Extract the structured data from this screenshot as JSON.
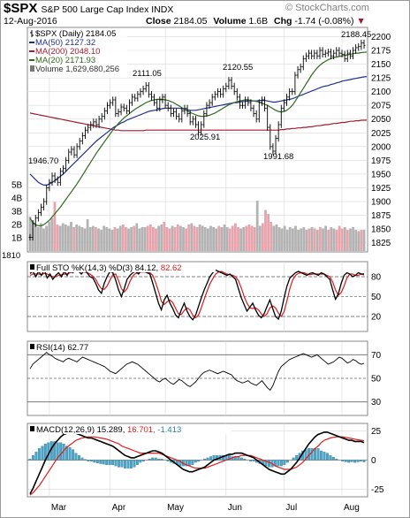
{
  "header": {
    "symbol": "$SPX",
    "name": "S&P 500 Large Cap Index",
    "exchange": "INDX",
    "watermark": "© StockCharts.com",
    "date": "12-Aug-2016",
    "close_label": "Close",
    "close_value": "2184.05",
    "volume_label": "Volume",
    "volume_value": "1.6B",
    "chg_label": "Chg",
    "chg_value": "-1.74 (-0.08%)",
    "chg_arrow": "▼"
  },
  "legend": {
    "price": "$SPX (Daily) 2184.05",
    "ma50": "MA(50) 2127.32",
    "ma200": "MA(200) 2048.10",
    "ma20": "MA(20) 2171.93",
    "volume": "Volume 1,629,680,256"
  },
  "annotations": {
    "a1946": "1946.70",
    "a2111": "2111.05",
    "a2120": "2120.55",
    "a2025": "2025.91",
    "a1991": "1991.68",
    "a2188": "2188.45",
    "a1810": "1810"
  },
  "price_axis": {
    "ticks": [
      "2200",
      "2175",
      "2150",
      "2125",
      "2100",
      "2075",
      "2050",
      "2025",
      "2000",
      "1975",
      "1950",
      "1925",
      "1900",
      "1875",
      "1850",
      "1825"
    ],
    "volume_ticks": [
      "5B",
      "4B",
      "3B",
      "2B",
      "1B"
    ]
  },
  "sto": {
    "label": "Full STO %K(14,3) %D(3) ",
    "k": "84.12",
    "d": "82.62",
    "ticks": [
      "80",
      "50",
      "20"
    ]
  },
  "rsi": {
    "label": "RSI(14) 62.77",
    "ticks": [
      "70",
      "50",
      "30"
    ]
  },
  "macd": {
    "label": "MACD(12,26,9) 15.289, ",
    "signal": "16.701",
    "hist": ", -1.413",
    "ticks": [
      "25",
      "0",
      "-25"
    ]
  },
  "x_labels": [
    "Mar",
    "Apr",
    "May",
    "Jun",
    "Jul",
    "Aug"
  ],
  "colors": {
    "price": "#000000",
    "ma50": "#1f2f8f",
    "ma200": "#a31c2c",
    "ma20": "#2e6b1f",
    "volume_up": "#b3b3b3",
    "volume_down": "#e7a4ad",
    "sto_d": "#e31a1c",
    "macd_hist": "#4aa6c8",
    "grid": "#d9d9d9"
  },
  "chart_data": {
    "type": "line",
    "title": "$SPX S&P 500 Large Cap Index",
    "y_range": [
      1810,
      2200
    ],
    "series": [
      {
        "name": "$SPX (Daily)",
        "type": "ohlc",
        "values": [
          1835,
          1860,
          1870,
          1880,
          1890,
          1900,
          1925,
          1935,
          1946.7,
          1940,
          1935,
          1955,
          1960,
          1975,
          1990,
          1995,
          1985,
          2000,
          2010,
          2020,
          2030,
          2035,
          2040,
          2045,
          2040,
          2050,
          2055,
          2065,
          2075,
          2080,
          2085,
          2060,
          2063,
          2072,
          2070,
          2065,
          2080,
          2090,
          2088,
          2095,
          2100,
          2105,
          2111.05,
          2095,
          2090,
          2080,
          2070,
          2085,
          2090,
          2075,
          2070,
          2060,
          2063,
          2055,
          2050,
          2065,
          2070,
          2060,
          2045,
          2050,
          2040,
          2025.91,
          2040,
          2060,
          2075,
          2080,
          2090,
          2095,
          2100,
          2095,
          2105,
          2110,
          2120.55,
          2110,
          2100,
          2090,
          2075,
          2075,
          2085,
          2080,
          2070,
          2060,
          2050,
          2080,
          2085,
          2070,
          2035,
          2000,
          1991.68,
          2015,
          2040,
          2070,
          2080,
          2090,
          2100,
          2100,
          2130,
          2140,
          2145,
          2160,
          2165,
          2170,
          2165,
          2170,
          2165,
          2175,
          2168,
          2170,
          2172,
          2165,
          2170,
          2175,
          2170,
          2168,
          2160,
          2170,
          2165,
          2175,
          2180,
          2182,
          2188.45,
          2184.05
        ]
      },
      {
        "name": "MA(50)",
        "values": [
          1950,
          1945,
          1940,
          1935,
          1932,
          1930,
          1930,
          1932,
          1935,
          1938,
          1942,
          1946,
          1950,
          1955,
          1960,
          1965,
          1970,
          1975,
          1980,
          1985,
          1990,
          1995,
          2000,
          2005,
          2010,
          2014,
          2018,
          2022,
          2026,
          2030,
          2034,
          2037,
          2040,
          2043,
          2045,
          2048,
          2050,
          2052,
          2054,
          2056,
          2058,
          2060,
          2062,
          2064,
          2065,
          2066,
          2067,
          2068,
          2069,
          2070,
          2070,
          2070,
          2070,
          2070,
          2070,
          2069,
          2068,
          2067,
          2066,
          2066,
          2066,
          2067,
          2068,
          2069,
          2070,
          2071,
          2072,
          2073,
          2074,
          2075,
          2076,
          2077,
          2078,
          2079,
          2080,
          2080,
          2081,
          2082,
          2082,
          2083,
          2083,
          2083,
          2083,
          2084,
          2084,
          2084,
          2083,
          2082,
          2081,
          2081,
          2082,
          2083,
          2084,
          2085,
          2086,
          2087,
          2089,
          2091,
          2093,
          2095,
          2097,
          2099,
          2101,
          2103,
          2105,
          2107,
          2109,
          2110,
          2111,
          2113,
          2114,
          2116,
          2117,
          2119,
          2120,
          2121,
          2122,
          2123,
          2124,
          2125,
          2126,
          2127,
          2127.32
        ]
      },
      {
        "name": "MA(200)",
        "values": [
          2061,
          2060,
          2059,
          2058,
          2057,
          2056,
          2055,
          2054,
          2053,
          2052,
          2051,
          2050,
          2049,
          2048,
          2047,
          2046,
          2045,
          2044,
          2043,
          2042,
          2041,
          2040,
          2039,
          2038,
          2037,
          2036,
          2035,
          2034,
          2033,
          2032,
          2031,
          2030,
          2030,
          2029,
          2029,
          2029,
          2029,
          2029,
          2029,
          2029,
          2029,
          2029,
          2030,
          2030,
          2030,
          2030,
          2030,
          2030,
          2030,
          2030,
          2030,
          2030,
          2030,
          2030,
          2030,
          2030,
          2030,
          2030,
          2030,
          2030,
          2030,
          2030,
          2030,
          2030,
          2030,
          2030,
          2030,
          2030,
          2030,
          2030,
          2030,
          2030,
          2030,
          2030,
          2030,
          2030,
          2030,
          2030,
          2030,
          2030,
          2030,
          2030,
          2030,
          2030,
          2030,
          2030,
          2030,
          2030,
          2030,
          2030,
          2030,
          2031,
          2031,
          2032,
          2032,
          2033,
          2033,
          2034,
          2034,
          2035,
          2035,
          2036,
          2036,
          2037,
          2038,
          2038,
          2039,
          2040,
          2040,
          2041,
          2042,
          2042,
          2043,
          2044,
          2044,
          2045,
          2046,
          2046,
          2047,
          2047,
          2048,
          2048,
          2048.1
        ]
      },
      {
        "name": "MA(20)",
        "values": [
          1870,
          1862,
          1858,
          1856,
          1856,
          1858,
          1862,
          1866,
          1872,
          1878,
          1884,
          1890,
          1897,
          1904,
          1911,
          1918,
          1925,
          1932,
          1940,
          1948,
          1956,
          1964,
          1972,
          1980,
          1988,
          1995,
          2002,
          2009,
          2016,
          2023,
          2030,
          2036,
          2042,
          2047,
          2052,
          2056,
          2060,
          2064,
          2068,
          2071,
          2074,
          2077,
          2080,
          2082,
          2084,
          2085,
          2086,
          2086,
          2086,
          2085,
          2084,
          2082,
          2080,
          2077,
          2074,
          2071,
          2068,
          2065,
          2062,
          2060,
          2058,
          2056,
          2055,
          2055,
          2056,
          2057,
          2059,
          2061,
          2064,
          2067,
          2070,
          2073,
          2076,
          2078,
          2080,
          2082,
          2083,
          2084,
          2085,
          2085,
          2084,
          2083,
          2082,
          2081,
          2079,
          2077,
          2075,
          2072,
          2069,
          2066,
          2064,
          2063,
          2064,
          2066,
          2070,
          2075,
          2082,
          2090,
          2098,
          2106,
          2114,
          2122,
          2130,
          2137,
          2143,
          2148,
          2152,
          2155,
          2158,
          2160,
          2162,
          2163,
          2164,
          2165,
          2166,
          2167,
          2168,
          2169,
          2170,
          2170,
          2171,
          2171.5,
          2171.93
        ]
      }
    ],
    "volume": {
      "unit": "B",
      "values": [
        2.6,
        2.3,
        2.0,
        1.8,
        2.1,
        1.7,
        1.9,
        2.2,
        2.5,
        3.7,
        2.0,
        1.9,
        2.1,
        2.0,
        1.9,
        2.2,
        1.8,
        2.0,
        1.9,
        1.8,
        1.7,
        2.4,
        1.8,
        1.9,
        1.8,
        1.7,
        1.6,
        1.9,
        1.8,
        1.7,
        1.6,
        1.8,
        1.7,
        1.9,
        2.0,
        1.8,
        1.7,
        1.8,
        1.9,
        2.1,
        1.7,
        1.8,
        1.8,
        1.9,
        2.0,
        1.8,
        1.7,
        1.9,
        2.0,
        2.2,
        1.8,
        1.7,
        1.9,
        1.8,
        2.0,
        1.9,
        1.8,
        1.7,
        2.0,
        2.1,
        1.9,
        1.8,
        2.0,
        1.9,
        1.8,
        1.7,
        1.9,
        1.8,
        1.7,
        1.9,
        1.8,
        2.0,
        1.8,
        1.7,
        1.9,
        2.1,
        1.8,
        1.7,
        1.8,
        1.9,
        2.0,
        1.9,
        1.8,
        3.8,
        1.9,
        2.1,
        3.1,
        2.8,
        2.2,
        1.9,
        2.0,
        1.8,
        1.7,
        1.9,
        1.6,
        1.8,
        1.7,
        1.9,
        1.6,
        1.7,
        1.8,
        1.6,
        1.7,
        1.8,
        1.7,
        1.6,
        1.8,
        1.7,
        1.9,
        1.6,
        1.8,
        1.7,
        1.6,
        1.9,
        1.7,
        1.8,
        1.6,
        1.7,
        1.8,
        1.6,
        1.5,
        1.6,
        1.6
      ]
    },
    "full_sto": {
      "y_range": [
        0,
        100
      ],
      "k": [
        85,
        88,
        80,
        88,
        82,
        90,
        78,
        84,
        76,
        82,
        86,
        80,
        88,
        82,
        90,
        86,
        92,
        88,
        84,
        90,
        86,
        80,
        78,
        70,
        60,
        55,
        70,
        80,
        88,
        86,
        75,
        60,
        50,
        62,
        76,
        82,
        86,
        88,
        84,
        90,
        88,
        86,
        84,
        70,
        55,
        40,
        30,
        45,
        52,
        40,
        32,
        22,
        18,
        30,
        40,
        28,
        20,
        15,
        22,
        35,
        48,
        60,
        70,
        80,
        86,
        90,
        88,
        86,
        84,
        82,
        84,
        80,
        76,
        62,
        48,
        38,
        28,
        34,
        40,
        30,
        22,
        18,
        24,
        35,
        45,
        32,
        20,
        16,
        28,
        48,
        66,
        78,
        82,
        86,
        88,
        86,
        84,
        82,
        85,
        86,
        84,
        82,
        86,
        84,
        80,
        76,
        60,
        46,
        54,
        70,
        82,
        86,
        84,
        80,
        82,
        86,
        84,
        84.12
      ],
      "d": [
        82,
        84,
        84,
        84,
        83,
        85,
        84,
        82,
        80,
        80,
        82,
        83,
        84,
        84,
        86,
        87,
        89,
        89,
        88,
        87,
        86,
        84,
        81,
        76,
        68,
        62,
        61,
        66,
        75,
        83,
        84,
        74,
        62,
        57,
        62,
        73,
        81,
        85,
        86,
        87,
        87,
        87,
        86,
        82,
        71,
        58,
        43,
        38,
        42,
        45,
        41,
        32,
        24,
        23,
        29,
        33,
        30,
        22,
        18,
        22,
        33,
        46,
        58,
        69,
        77,
        84,
        87,
        88,
        86,
        84,
        83,
        82,
        80,
        74,
        63,
        50,
        40,
        33,
        32,
        33,
        30,
        24,
        20,
        24,
        33,
        36,
        33,
        25,
        20,
        27,
        44,
        62,
        75,
        82,
        85,
        86,
        86,
        84,
        83,
        84,
        84,
        84,
        84,
        84,
        82,
        80,
        72,
        60,
        52,
        56,
        66,
        78,
        84,
        84,
        82,
        82,
        84,
        82.62
      ]
    },
    "rsi": {
      "y_range": [
        20,
        80
      ],
      "values": [
        58,
        62,
        64,
        66,
        68,
        70,
        72,
        70,
        69,
        67,
        66,
        65,
        64,
        66,
        67,
        66,
        65,
        64,
        66,
        68,
        67,
        66,
        65,
        64,
        63,
        62,
        61,
        60,
        58,
        56,
        55,
        54,
        56,
        58,
        60,
        62,
        63,
        64,
        63,
        62,
        60,
        58,
        56,
        54,
        52,
        50,
        48,
        47,
        49,
        50,
        48,
        46,
        45,
        47,
        49,
        48,
        46,
        44,
        43,
        45,
        47,
        50,
        53,
        55,
        56,
        57,
        56,
        55,
        54,
        55,
        56,
        55,
        54,
        53,
        50,
        48,
        47,
        46,
        47,
        48,
        46,
        45,
        44,
        46,
        48,
        45,
        42,
        40,
        44,
        50,
        56,
        60,
        62,
        64,
        66,
        67,
        68,
        69,
        70,
        71,
        70,
        69,
        68,
        69,
        70,
        68,
        66,
        64,
        62,
        63,
        64,
        66,
        68,
        67,
        65,
        63,
        64,
        66,
        65,
        63,
        62,
        62.77
      ]
    },
    "macd": {
      "y_range": [
        -30,
        30
      ],
      "macd": [
        -29,
        -24,
        -18,
        -12,
        -6,
        0,
        5,
        10,
        14,
        17,
        20,
        22,
        23,
        24,
        24,
        23,
        22,
        21,
        20,
        19,
        19,
        18,
        17,
        16,
        15,
        14,
        13,
        12,
        10,
        8,
        6,
        4,
        3,
        2,
        2,
        3,
        4,
        5,
        6,
        7,
        8,
        8,
        7,
        6,
        4,
        2,
        0,
        -2,
        -4,
        -6,
        -8,
        -9,
        -10,
        -10,
        -9,
        -8,
        -7,
        -6,
        -4,
        -2,
        0,
        1,
        2,
        3,
        4,
        5,
        5,
        6,
        6,
        6,
        5,
        4,
        3,
        2,
        0,
        -2,
        -4,
        -6,
        -8,
        -9,
        -10,
        -11,
        -12,
        -12,
        -10,
        -8,
        -5,
        -2,
        2,
        6,
        10,
        14,
        17,
        20,
        22,
        23,
        24,
        24,
        23,
        22,
        21,
        20,
        19,
        18,
        17,
        17,
        16,
        16,
        16,
        15,
        15,
        15.289
      ],
      "signal": [
        -30,
        -28,
        -25,
        -22,
        -18,
        -14,
        -10,
        -6,
        -2,
        2,
        5,
        8,
        11,
        13,
        15,
        17,
        18,
        19,
        19.5,
        20,
        20,
        20,
        19.5,
        19,
        18.5,
        18,
        17,
        16,
        15,
        14,
        12,
        11,
        10,
        9,
        8,
        7,
        6,
        6,
        6,
        6,
        6,
        6,
        6,
        5,
        4,
        3,
        2,
        1,
        0,
        -1,
        -3,
        -4,
        -5,
        -6,
        -7,
        -7,
        -7,
        -7,
        -6,
        -5,
        -4,
        -3,
        -2,
        -1,
        0,
        1,
        2,
        3,
        3,
        4,
        4,
        4,
        4,
        3,
        2,
        1,
        0,
        -1,
        -2,
        -3,
        -5,
        -6,
        -7,
        -8,
        -8,
        -8,
        -7,
        -6,
        -4,
        -2,
        1,
        4,
        7,
        10,
        12,
        15,
        17,
        18,
        19,
        19.5,
        20,
        20,
        20,
        19.5,
        19,
        18.5,
        18,
        17.5,
        17,
        16.701
      ]
    }
  }
}
